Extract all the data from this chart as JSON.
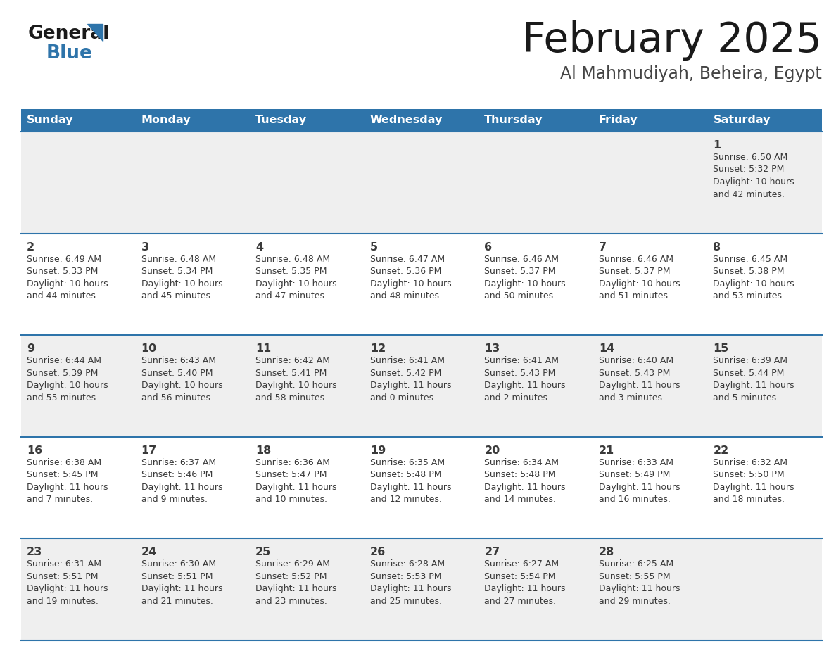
{
  "title": "February 2025",
  "subtitle": "Al Mahmudiyah, Beheira, Egypt",
  "days_of_week": [
    "Sunday",
    "Monday",
    "Tuesday",
    "Wednesday",
    "Thursday",
    "Friday",
    "Saturday"
  ],
  "header_bg": "#2E74AA",
  "header_text_color": "#FFFFFF",
  "cell_bg_light": "#EFEFEF",
  "cell_bg_white": "#FFFFFF",
  "row_line_color": "#2E74AA",
  "text_color": "#3A3A3A",
  "title_color": "#1A1A1A",
  "subtitle_color": "#444444",
  "logo_general_color": "#1A1A1A",
  "logo_blue_color": "#2E74AA",
  "calendar_data": [
    [
      null,
      null,
      null,
      null,
      null,
      null,
      {
        "day": "1",
        "sunrise": "6:50 AM",
        "sunset": "5:32 PM",
        "daylight_h": "10 hours",
        "daylight_m": "and 42 minutes."
      }
    ],
    [
      {
        "day": "2",
        "sunrise": "6:49 AM",
        "sunset": "5:33 PM",
        "daylight_h": "10 hours",
        "daylight_m": "and 44 minutes."
      },
      {
        "day": "3",
        "sunrise": "6:48 AM",
        "sunset": "5:34 PM",
        "daylight_h": "10 hours",
        "daylight_m": "and 45 minutes."
      },
      {
        "day": "4",
        "sunrise": "6:48 AM",
        "sunset": "5:35 PM",
        "daylight_h": "10 hours",
        "daylight_m": "and 47 minutes."
      },
      {
        "day": "5",
        "sunrise": "6:47 AM",
        "sunset": "5:36 PM",
        "daylight_h": "10 hours",
        "daylight_m": "and 48 minutes."
      },
      {
        "day": "6",
        "sunrise": "6:46 AM",
        "sunset": "5:37 PM",
        "daylight_h": "10 hours",
        "daylight_m": "and 50 minutes."
      },
      {
        "day": "7",
        "sunrise": "6:46 AM",
        "sunset": "5:37 PM",
        "daylight_h": "10 hours",
        "daylight_m": "and 51 minutes."
      },
      {
        "day": "8",
        "sunrise": "6:45 AM",
        "sunset": "5:38 PM",
        "daylight_h": "10 hours",
        "daylight_m": "and 53 minutes."
      }
    ],
    [
      {
        "day": "9",
        "sunrise": "6:44 AM",
        "sunset": "5:39 PM",
        "daylight_h": "10 hours",
        "daylight_m": "and 55 minutes."
      },
      {
        "day": "10",
        "sunrise": "6:43 AM",
        "sunset": "5:40 PM",
        "daylight_h": "10 hours",
        "daylight_m": "and 56 minutes."
      },
      {
        "day": "11",
        "sunrise": "6:42 AM",
        "sunset": "5:41 PM",
        "daylight_h": "10 hours",
        "daylight_m": "and 58 minutes."
      },
      {
        "day": "12",
        "sunrise": "6:41 AM",
        "sunset": "5:42 PM",
        "daylight_h": "11 hours",
        "daylight_m": "and 0 minutes."
      },
      {
        "day": "13",
        "sunrise": "6:41 AM",
        "sunset": "5:43 PM",
        "daylight_h": "11 hours",
        "daylight_m": "and 2 minutes."
      },
      {
        "day": "14",
        "sunrise": "6:40 AM",
        "sunset": "5:43 PM",
        "daylight_h": "11 hours",
        "daylight_m": "and 3 minutes."
      },
      {
        "day": "15",
        "sunrise": "6:39 AM",
        "sunset": "5:44 PM",
        "daylight_h": "11 hours",
        "daylight_m": "and 5 minutes."
      }
    ],
    [
      {
        "day": "16",
        "sunrise": "6:38 AM",
        "sunset": "5:45 PM",
        "daylight_h": "11 hours",
        "daylight_m": "and 7 minutes."
      },
      {
        "day": "17",
        "sunrise": "6:37 AM",
        "sunset": "5:46 PM",
        "daylight_h": "11 hours",
        "daylight_m": "and 9 minutes."
      },
      {
        "day": "18",
        "sunrise": "6:36 AM",
        "sunset": "5:47 PM",
        "daylight_h": "11 hours",
        "daylight_m": "and 10 minutes."
      },
      {
        "day": "19",
        "sunrise": "6:35 AM",
        "sunset": "5:48 PM",
        "daylight_h": "11 hours",
        "daylight_m": "and 12 minutes."
      },
      {
        "day": "20",
        "sunrise": "6:34 AM",
        "sunset": "5:48 PM",
        "daylight_h": "11 hours",
        "daylight_m": "and 14 minutes."
      },
      {
        "day": "21",
        "sunrise": "6:33 AM",
        "sunset": "5:49 PM",
        "daylight_h": "11 hours",
        "daylight_m": "and 16 minutes."
      },
      {
        "day": "22",
        "sunrise": "6:32 AM",
        "sunset": "5:50 PM",
        "daylight_h": "11 hours",
        "daylight_m": "and 18 minutes."
      }
    ],
    [
      {
        "day": "23",
        "sunrise": "6:31 AM",
        "sunset": "5:51 PM",
        "daylight_h": "11 hours",
        "daylight_m": "and 19 minutes."
      },
      {
        "day": "24",
        "sunrise": "6:30 AM",
        "sunset": "5:51 PM",
        "daylight_h": "11 hours",
        "daylight_m": "and 21 minutes."
      },
      {
        "day": "25",
        "sunrise": "6:29 AM",
        "sunset": "5:52 PM",
        "daylight_h": "11 hours",
        "daylight_m": "and 23 minutes."
      },
      {
        "day": "26",
        "sunrise": "6:28 AM",
        "sunset": "5:53 PM",
        "daylight_h": "11 hours",
        "daylight_m": "and 25 minutes."
      },
      {
        "day": "27",
        "sunrise": "6:27 AM",
        "sunset": "5:54 PM",
        "daylight_h": "11 hours",
        "daylight_m": "and 27 minutes."
      },
      {
        "day": "28",
        "sunrise": "6:25 AM",
        "sunset": "5:55 PM",
        "daylight_h": "11 hours",
        "daylight_m": "and 29 minutes."
      },
      null
    ]
  ]
}
